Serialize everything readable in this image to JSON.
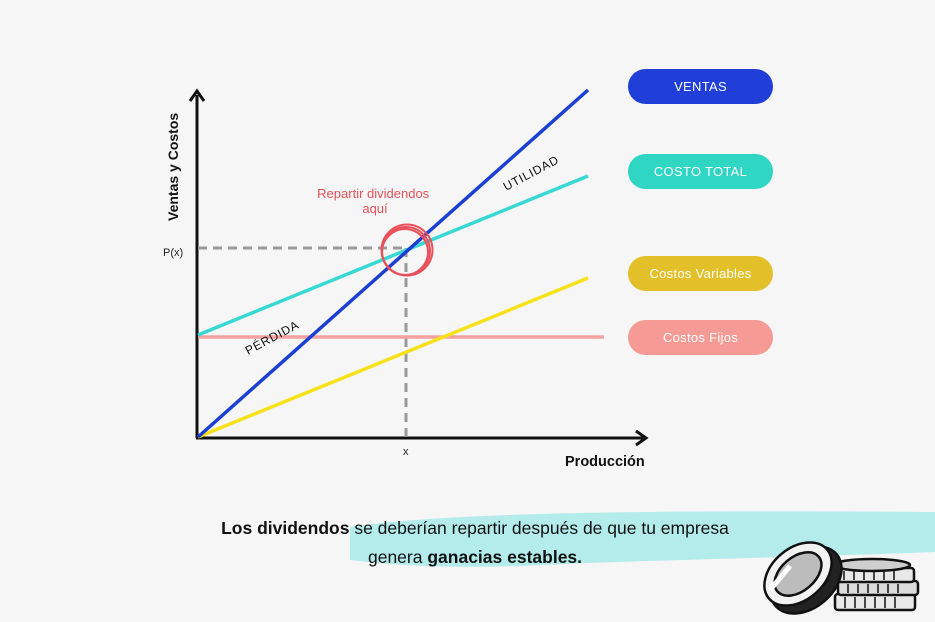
{
  "diagram": {
    "y_axis_label": "Ventas y Costos",
    "x_axis_label": "Producción",
    "p_tick": "P(x)",
    "x_tick": "x",
    "annotation": "Repartir dividendos\naquí",
    "utilidad_label": "UTILIDAD",
    "perdida_label": "PÉRDIDA"
  },
  "legend": {
    "ventas": "VENTAS",
    "costo_total": "COSTO TOTAL",
    "costos_variables": "Costos Variables",
    "costos_fijos": "Costos Fijos"
  },
  "colors": {
    "ventas": "#1f3fd8",
    "costo_total": "#2fd6c4",
    "costos_variables": "#e3c02a",
    "costos_fijos": "#f59a94",
    "variables_line": "#f7e21a",
    "fijos_line": "#f4a2a0",
    "costo_total_line": "#39d9d3",
    "ventas_line": "#1b3fd3",
    "annotation": "#e8515a"
  },
  "caption": {
    "bold1": "Los dividendos",
    "mid": " se deberían repartir después de que tu empresa genera ",
    "bold2": "ganacias estables."
  }
}
